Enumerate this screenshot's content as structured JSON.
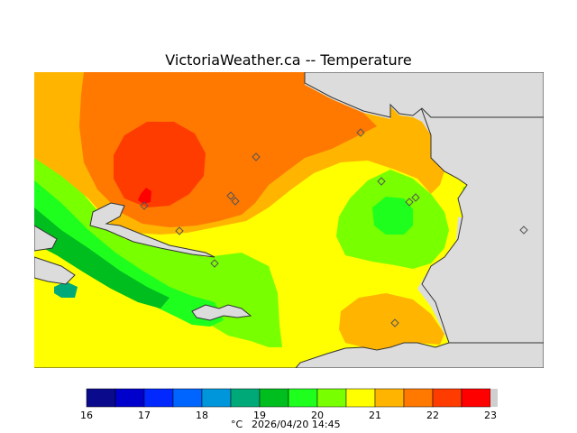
{
  "title": "VictoriaWeather.ca -- Temperature",
  "colorbar": {
    "ticks": [
      "16",
      "17",
      "18",
      "19",
      "20",
      "21",
      "22",
      "23"
    ],
    "colors": [
      "#0a0a8c",
      "#0000cd",
      "#0028ff",
      "#0064ff",
      "#0096dc",
      "#00aa78",
      "#00be1e",
      "#1eff1e",
      "#78ff00",
      "#ffff00",
      "#ffb400",
      "#ff7800",
      "#ff3c00",
      "#ff0000"
    ],
    "units": "°C",
    "timestamp": "2026/04/20 14:45"
  },
  "map": {
    "land_colors": {
      "t22_5": "#ff3c00",
      "t22": "#ff7800",
      "t21_5": "#ffb400",
      "t21": "#ffff00",
      "t20": "#78ff00",
      "t19_5": "#1eff1e",
      "t19": "#00be1e",
      "t18_5": "#00aa78"
    },
    "water_color": "#dcdcdc",
    "station_count": 12
  }
}
